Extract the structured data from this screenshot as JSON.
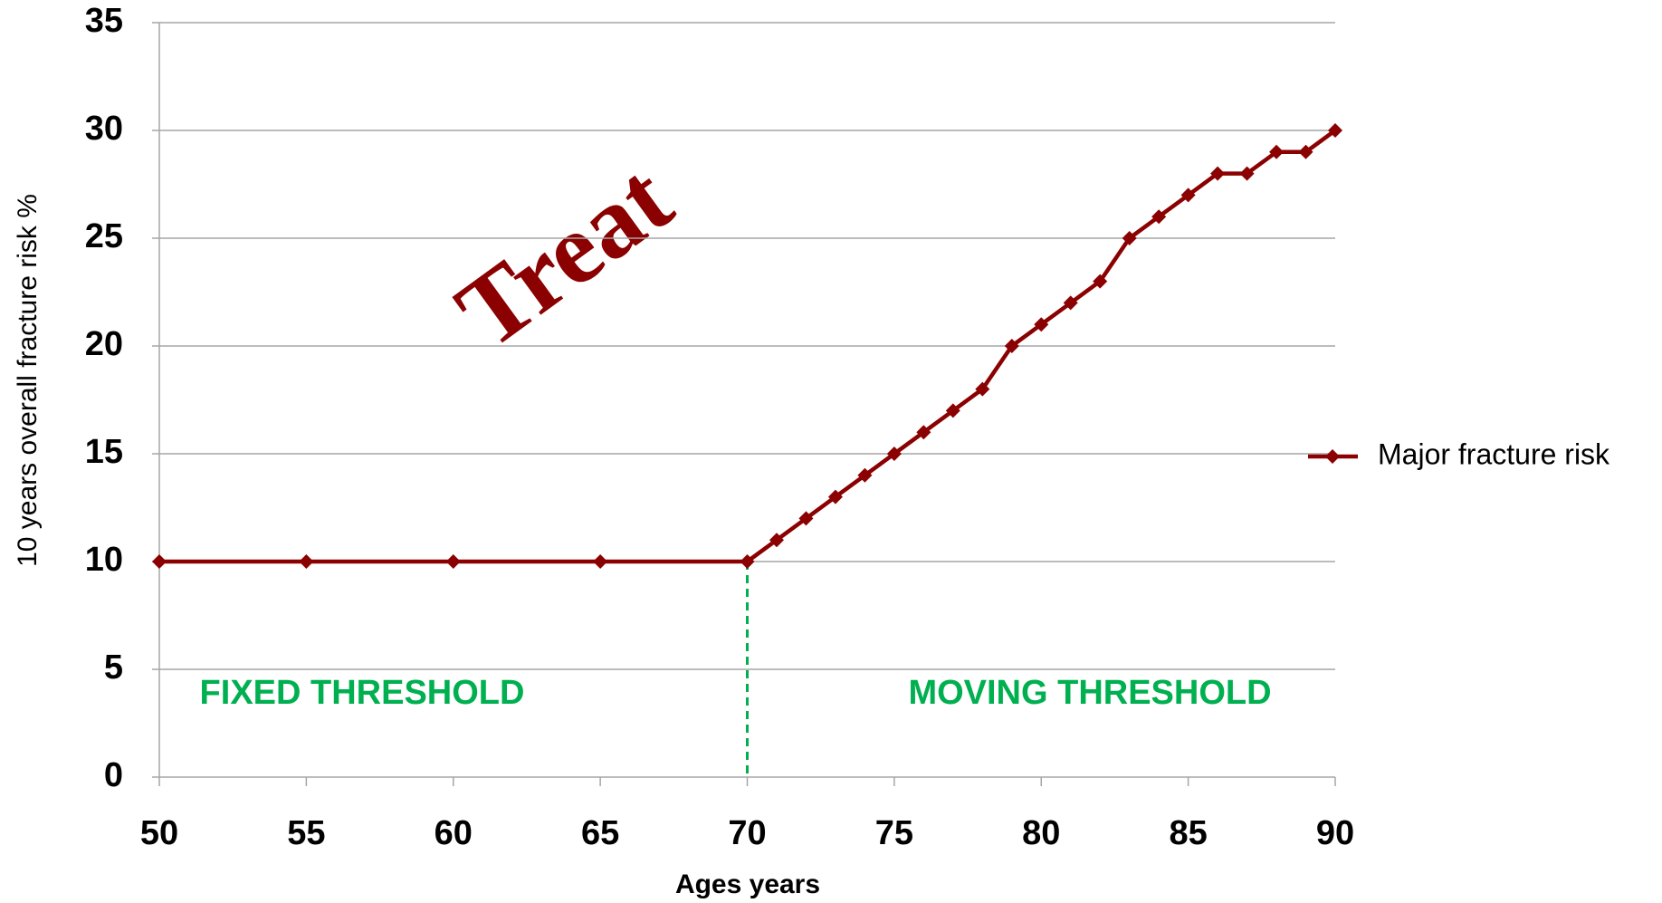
{
  "chart_data": {
    "type": "line",
    "x_label": "Ages years",
    "y_label": "10 years  overall fracture risk %",
    "annotations": [
      "Treat",
      "FIXED THRESHOLD",
      "MOVING THRESHOLD"
    ],
    "x": [
      50,
      55,
      60,
      65,
      70,
      71,
      72,
      73,
      74,
      75,
      76,
      77,
      78,
      79,
      80,
      81,
      82,
      83,
      84,
      85,
      86,
      87,
      88,
      89,
      90
    ],
    "series": [
      {
        "name": "Major fracture risk",
        "color": "#8b0000",
        "values": [
          10,
          10,
          10,
          10,
          10,
          11,
          12,
          13,
          14,
          15,
          16,
          17,
          18,
          20,
          21,
          22,
          23,
          25,
          26,
          27,
          28,
          28,
          29,
          29,
          30
        ]
      }
    ],
    "threshold_x": 70,
    "threshold_color": "#00b050",
    "xlim": [
      50,
      90
    ],
    "xticks": [
      50,
      55,
      60,
      65,
      70,
      75,
      80,
      85,
      90
    ],
    "ylim": [
      0,
      35
    ],
    "yticks": [
      0,
      5,
      10,
      15,
      20,
      25,
      30,
      35
    ],
    "grid": true,
    "legend": "right"
  }
}
